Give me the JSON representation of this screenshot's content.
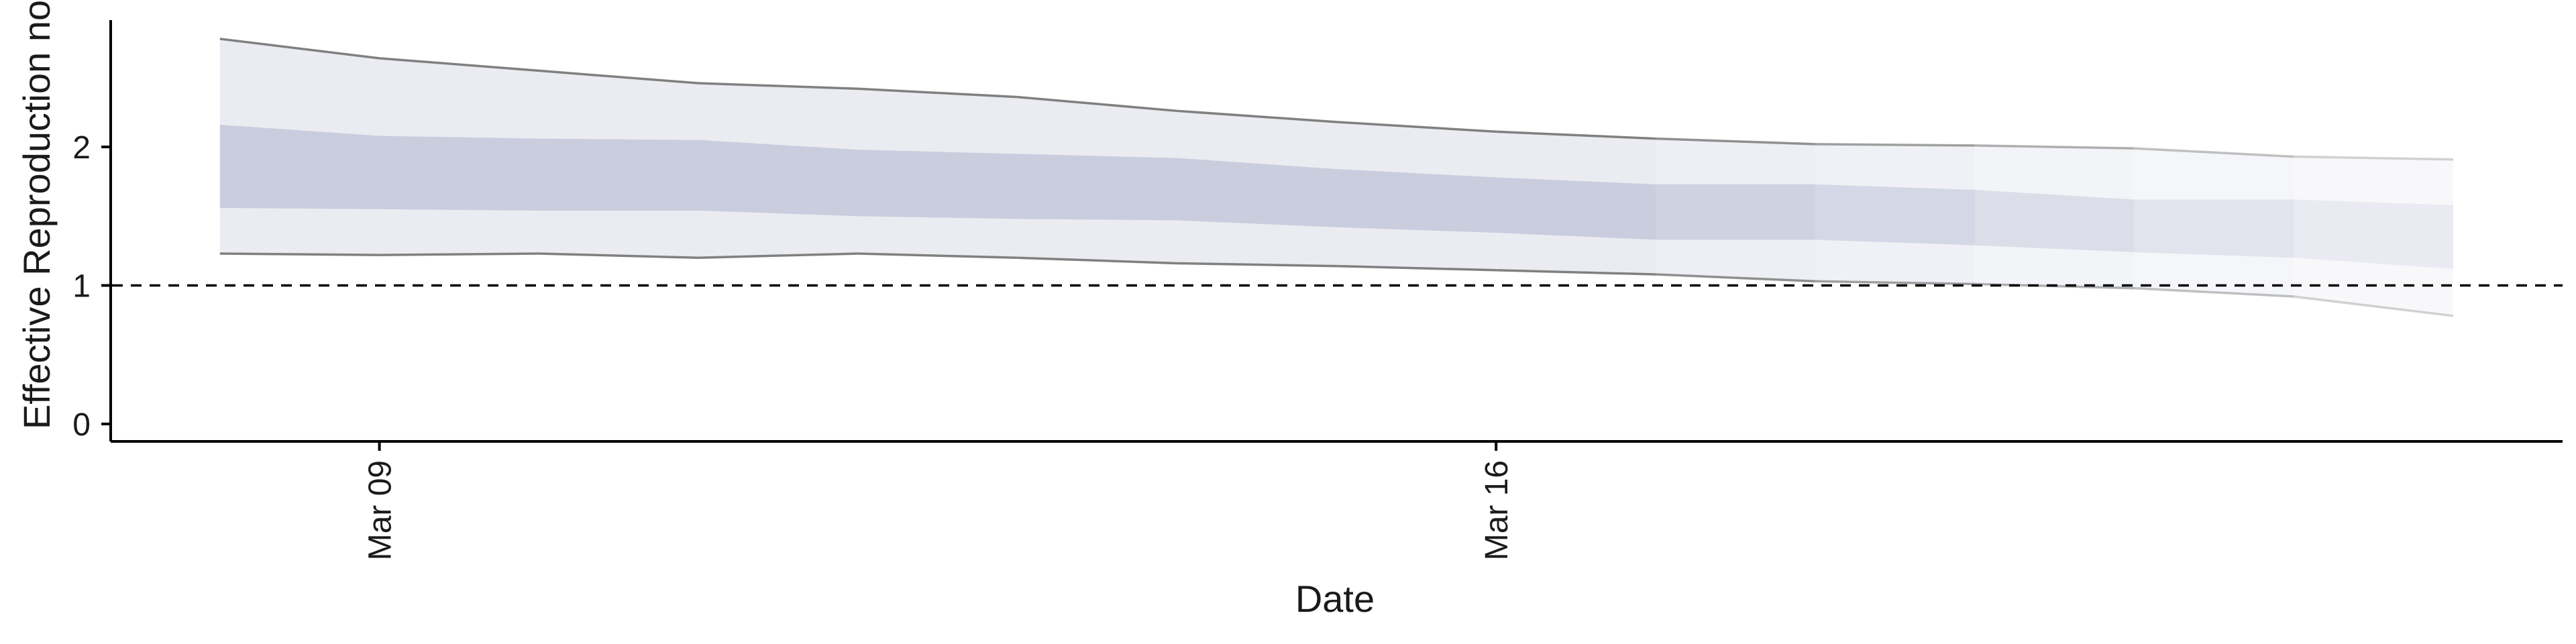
{
  "chart_data": {
    "type": "area",
    "title": "",
    "xlabel": "Date",
    "ylabel": "Effective Reproduction no",
    "x_tick_labels": [
      {
        "date": "2020-03-09",
        "label": "Mar 09"
      },
      {
        "date": "2020-03-16",
        "label": "Mar 16"
      }
    ],
    "y_ticks": [
      0,
      1,
      2
    ],
    "ylim": [
      -0.1,
      3.0
    ],
    "xlim": [
      "2020-03-07",
      "2020-03-22"
    ],
    "reference_line": {
      "y": 1,
      "style": "dashed"
    },
    "grid": false,
    "legend": "none",
    "dates": [
      "2020-03-08",
      "2020-03-09",
      "2020-03-10",
      "2020-03-11",
      "2020-03-12",
      "2020-03-13",
      "2020-03-14",
      "2020-03-15",
      "2020-03-16",
      "2020-03-17",
      "2020-03-18",
      "2020-03-19",
      "2020-03-20",
      "2020-03-21",
      "2020-03-22"
    ],
    "series": [
      {
        "values_lower_outer": [
          1.23,
          1.22,
          1.23,
          1.2,
          1.23,
          1.2,
          1.16,
          1.14,
          1.11,
          1.08,
          1.03,
          1.01,
          0.98,
          0.92,
          0.78
        ]
      },
      {
        "values_lower_inner": [
          1.56,
          1.55,
          1.54,
          1.54,
          1.5,
          1.48,
          1.47,
          1.42,
          1.38,
          1.33,
          1.33,
          1.29,
          1.24,
          1.2,
          1.12
        ]
      },
      {
        "values_upper_inner": [
          2.16,
          2.08,
          2.06,
          2.05,
          1.98,
          1.95,
          1.92,
          1.84,
          1.78,
          1.73,
          1.73,
          1.69,
          1.62,
          1.62,
          1.58
        ]
      },
      {
        "values_upper_outer": [
          2.78,
          2.64,
          2.55,
          2.46,
          2.42,
          2.36,
          2.26,
          2.18,
          2.11,
          2.06,
          2.02,
          2.01,
          1.99,
          1.93,
          1.91
        ]
      }
    ],
    "colors": {
      "outer_band": "#dde0ea",
      "inner_band": "#bcc1d6",
      "bound_line": "#808080",
      "axis": "#000000"
    }
  }
}
